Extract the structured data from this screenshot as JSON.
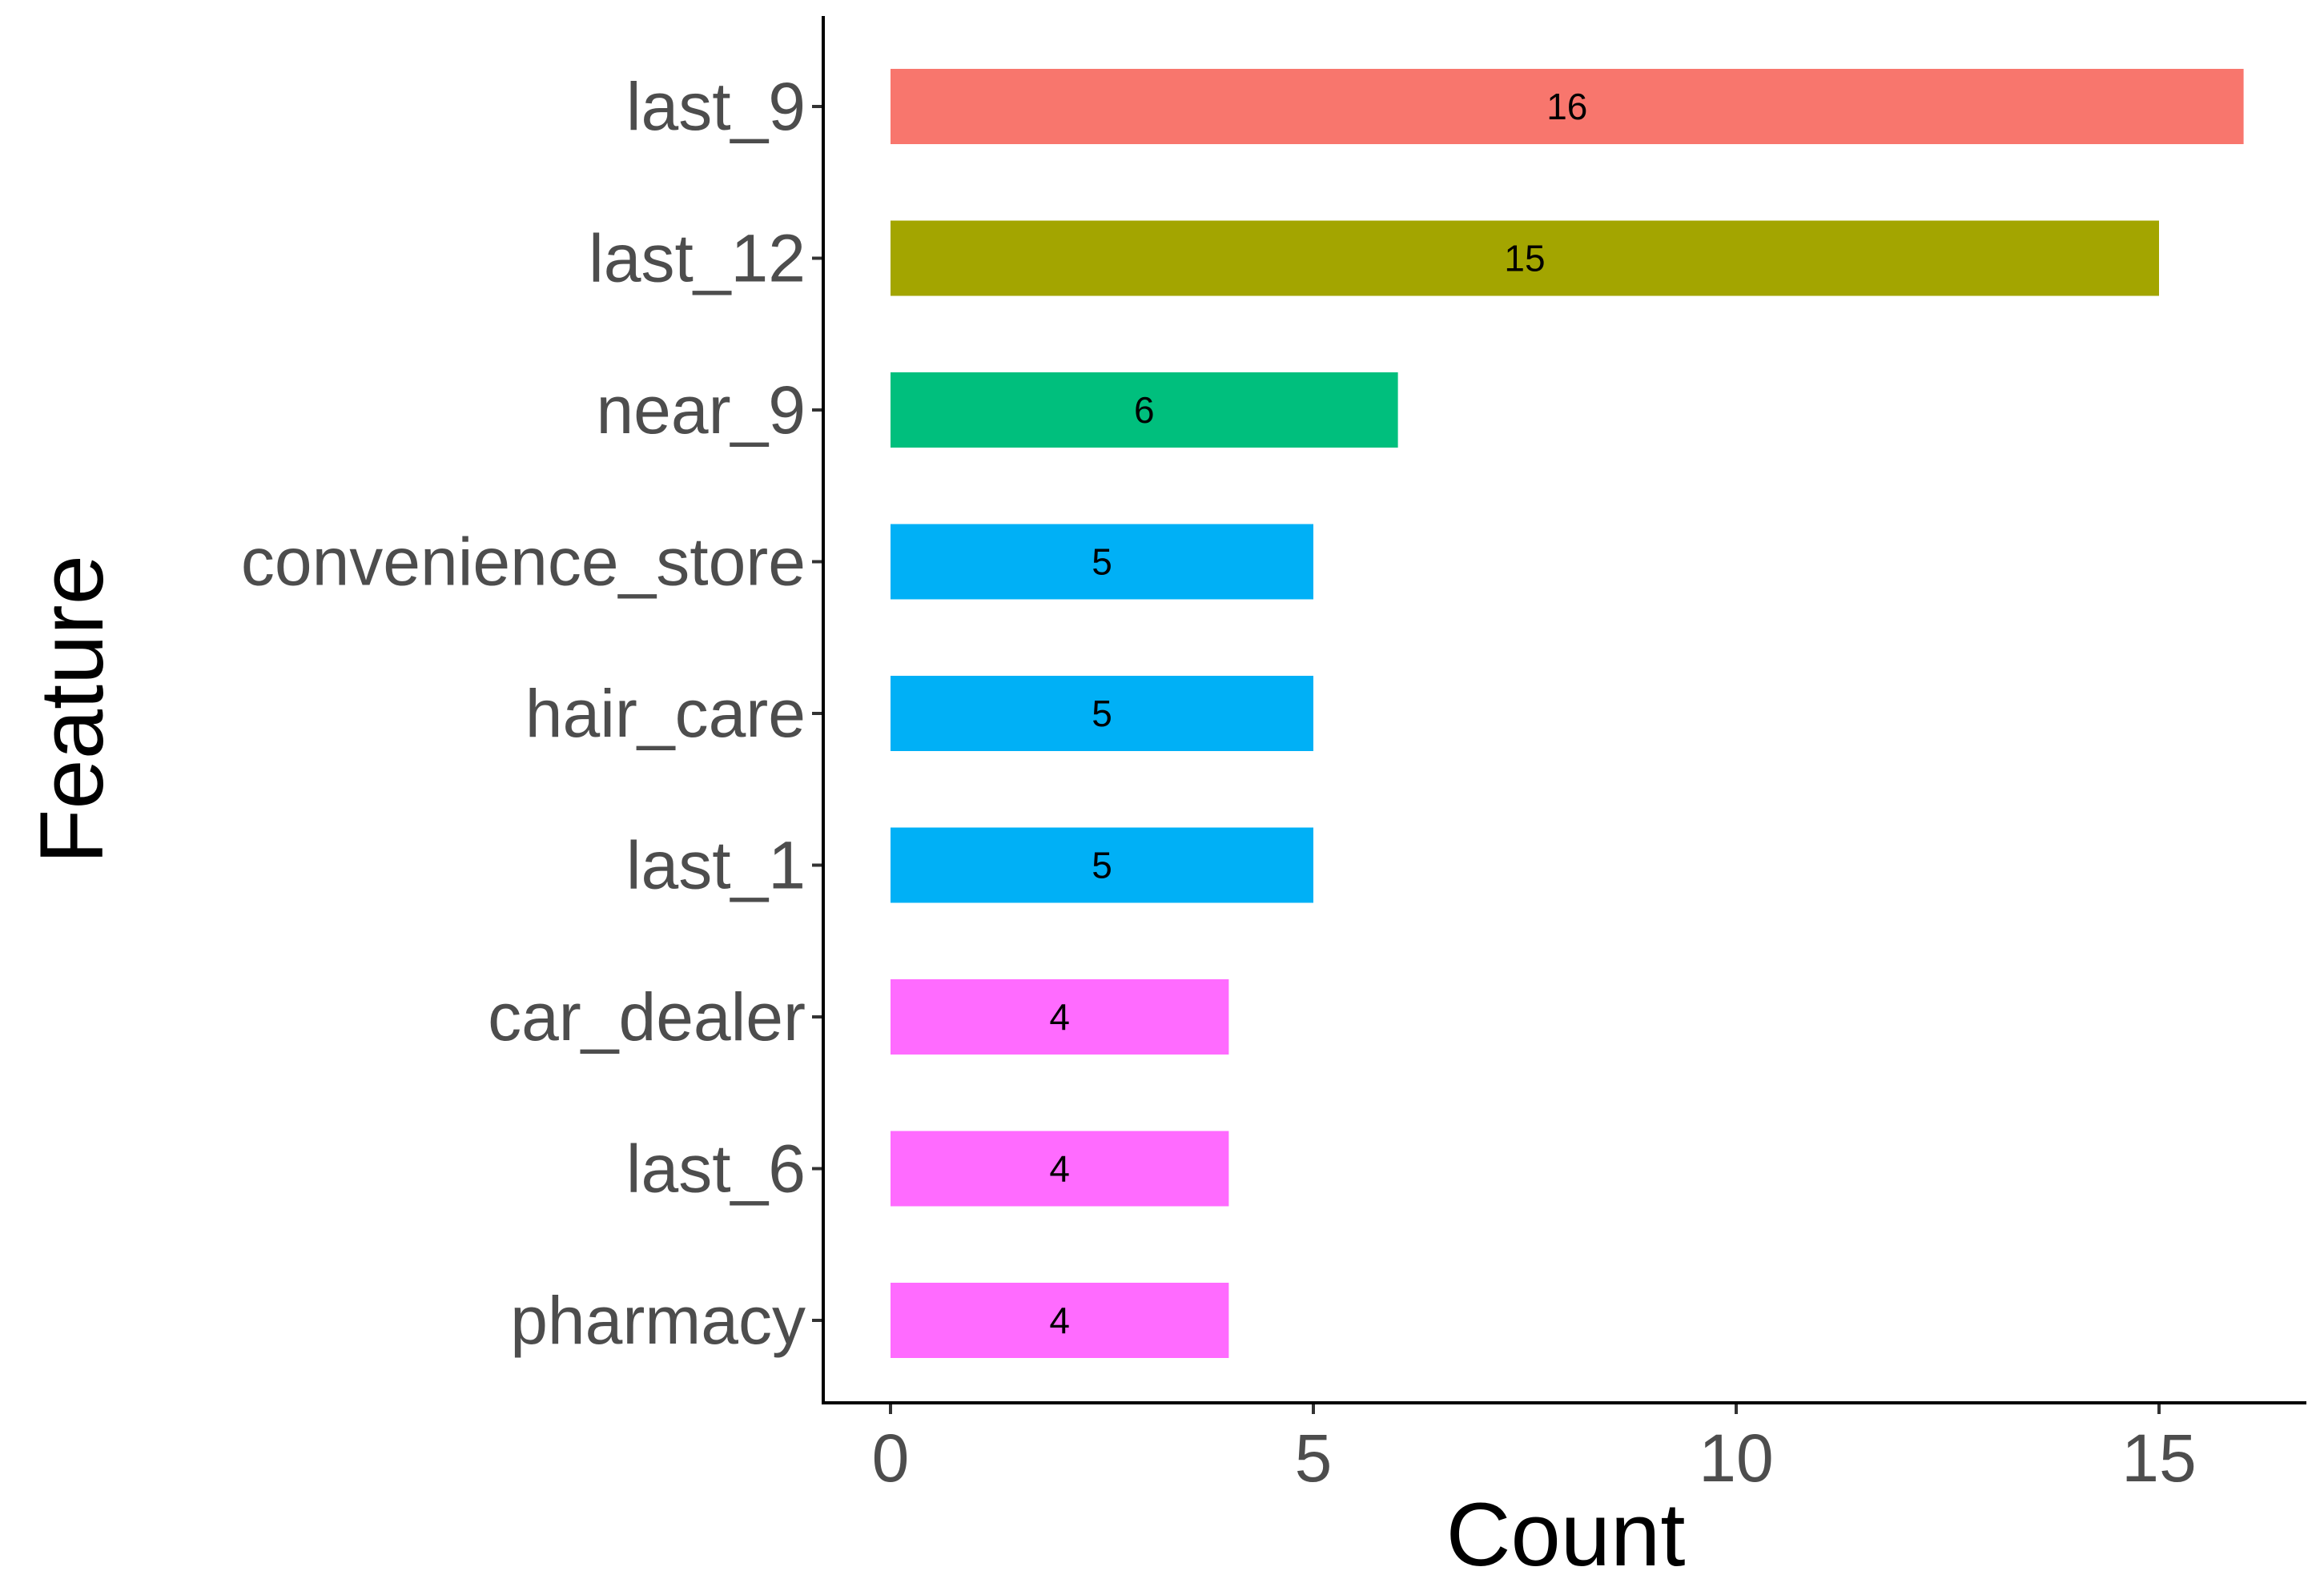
{
  "chart_data": {
    "type": "bar",
    "orientation": "horizontal",
    "categories": [
      "last_9",
      "last_12",
      "near_9",
      "convenience_store",
      "hair_care",
      "last_1",
      "car_dealer",
      "last_6",
      "pharmacy"
    ],
    "values": [
      16,
      15,
      6,
      5,
      5,
      5,
      4,
      4,
      4
    ],
    "bar_colors": [
      "#F8766D",
      "#A3A500",
      "#00BF7D",
      "#00B0F6",
      "#00B0F6",
      "#00B0F6",
      "#FF6BFF",
      "#FF6BFF",
      "#FF6BFF"
    ],
    "xlabel": "Count",
    "ylabel": "Feature",
    "xticks": [
      0,
      5,
      10,
      15
    ],
    "xlim": [
      0,
      16.8
    ],
    "grid": false,
    "legend": "none"
  }
}
